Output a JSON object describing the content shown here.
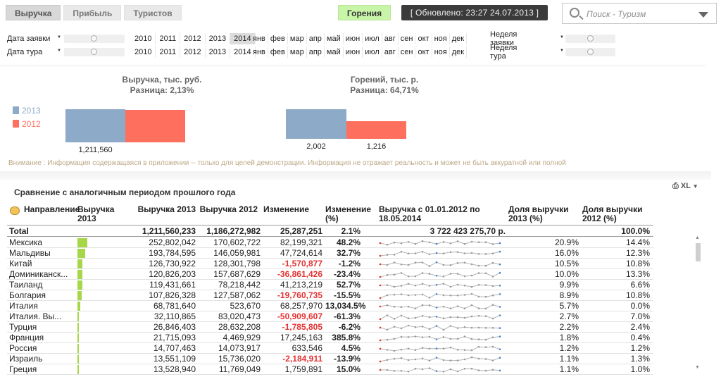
{
  "tabs": [
    "Выручка",
    "Прибыль",
    "Туристов"
  ],
  "burn_button": "Горения",
  "updated": "[ Обновлено: 23:27 24.07.2013 ]",
  "search": {
    "placeholder": "Поиск - Туризм"
  },
  "filters": {
    "row1_label": "Дата заявки",
    "row2_label": "Дата тура",
    "years": [
      "2010",
      "2011",
      "2012",
      "2013",
      "2014"
    ],
    "selected_year": "2014",
    "months": [
      "янв",
      "фев",
      "мар",
      "апр",
      "май",
      "июн",
      "июл",
      "авг",
      "сен",
      "окт",
      "ноя",
      "дек"
    ],
    "row1_right_label": "Неделя заявки",
    "row2_right_label": "Неделя тура"
  },
  "revenue_chart": {
    "title": "Выручка, тыс. руб.",
    "diff": "Разница: 2,13%",
    "value_2013": "1,211,560",
    "value_2013_num": 1211560,
    "value_2012_num": 1186273
  },
  "burn_chart": {
    "title": "Горений, тыс. р.",
    "diff": "Разница: 64,71%",
    "value_2013": "2,002",
    "value_2012": "1,216",
    "value_2013_num": 2002,
    "value_2012_num": 1216
  },
  "legend": {
    "year_a": "2013",
    "year_b": "2012",
    "color_a": "#8eaac9",
    "color_b": "#ff6f5e"
  },
  "notice": "Внимание : Информация содержащаяся в приложении -- только для целей демонстрации.  Информация не отражает реальность и может не быть аккуратной или полной",
  "section_title": "Сравнение с аналогичным периодом прошлого года",
  "export_label": "XL",
  "table": {
    "headers": {
      "direction": "Направление",
      "rev2013_bar": "Выручка 2013",
      "rev2013": "Выручка 2013",
      "rev2012": "Выручка 2012",
      "change": "Изменение",
      "change_pct": "Изменение (%)",
      "since": "Выручка с 01.01.2012 по 18.05.2014",
      "share2013": "Доля выручки 2013 (%)",
      "share2012": "Доля выручки 2012 (%)"
    },
    "total": {
      "label": "Total",
      "rev2013": "1,211,560,233",
      "rev2012": "1,186,272,982",
      "change": "25,287,251",
      "change_pct": "2.1%",
      "since": "3 722 423 275,70 р.",
      "share2012": "100.0%"
    },
    "rows": [
      {
        "name": "Мексика",
        "rev2013": "252,802,042",
        "rev2012": "170,602,722",
        "change": "82,199,321",
        "neg": false,
        "pct": "48.2%",
        "share2013": "20.9%",
        "share2012": "14.4%",
        "bar": 252.8
      },
      {
        "name": "Мальдивы",
        "rev2013": "193,784,595",
        "rev2012": "146,059,981",
        "change": "47,724,614",
        "neg": false,
        "pct": "32.7%",
        "share2013": "16.0%",
        "share2012": "12.3%",
        "bar": 193.8
      },
      {
        "name": "Китай",
        "rev2013": "126,730,922",
        "rev2012": "128,301,798",
        "change": "-1,570,877",
        "neg": true,
        "pct": "-1.2%",
        "share2013": "10.5%",
        "share2012": "10.8%",
        "bar": 126.7
      },
      {
        "name": "Доминиканск...",
        "rev2013": "120,826,203",
        "rev2012": "157,687,629",
        "change": "-36,861,426",
        "neg": true,
        "pct": "-23.4%",
        "share2013": "10.0%",
        "share2012": "13.3%",
        "bar": 120.8
      },
      {
        "name": "Таиланд",
        "rev2013": "119,431,661",
        "rev2012": "78,218,442",
        "change": "41,213,219",
        "neg": false,
        "pct": "52.7%",
        "share2013": "9.9%",
        "share2012": "6.6%",
        "bar": 119.4
      },
      {
        "name": "Болгария",
        "rev2013": "107,826,328",
        "rev2012": "127,587,062",
        "change": "-19,760,735",
        "neg": true,
        "pct": "-15.5%",
        "share2013": "8.9%",
        "share2012": "10.8%",
        "bar": 107.8
      },
      {
        "name": "Италия",
        "rev2013": "68,781,640",
        "rev2012": "523,670",
        "change": "68,257,970",
        "neg": false,
        "pct": "13,034.5%",
        "share2013": "5.7%",
        "share2012": "0.0%",
        "bar": 68.8
      },
      {
        "name": "Италия. Вы...",
        "rev2013": "32,110,865",
        "rev2012": "83,020,473",
        "change": "-50,909,607",
        "neg": true,
        "pct": "-61.3%",
        "share2013": "2.7%",
        "share2012": "7.0%",
        "bar": 32.1
      },
      {
        "name": "Турция",
        "rev2013": "26,846,403",
        "rev2012": "28,632,208",
        "change": "-1,785,805",
        "neg": true,
        "pct": "-6.2%",
        "share2013": "2.2%",
        "share2012": "2.4%",
        "bar": 26.8
      },
      {
        "name": "Франция",
        "rev2013": "21,715,093",
        "rev2012": "4,469,929",
        "change": "17,245,163",
        "neg": false,
        "pct": "385.8%",
        "share2013": "1.8%",
        "share2012": "0.4%",
        "bar": 21.7
      },
      {
        "name": "Россия",
        "rev2013": "14,707,463",
        "rev2012": "14,073,917",
        "change": "633,546",
        "neg": false,
        "pct": "4.5%",
        "share2013": "1.2%",
        "share2012": "1.2%",
        "bar": 14.7
      },
      {
        "name": "Израиль",
        "rev2013": "13,551,109",
        "rev2012": "15,736,020",
        "change": "-2,184,911",
        "neg": true,
        "pct": "-13.9%",
        "share2013": "1.1%",
        "share2012": "1.3%",
        "bar": 13.6
      },
      {
        "name": "Греция",
        "rev2013": "13,528,940",
        "rev2012": "11,769,049",
        "change": "1,759,891",
        "neg": false,
        "pct": "15.0%",
        "share2013": "1.1%",
        "share2012": "1.0%",
        "bar": 13.5
      }
    ]
  }
}
